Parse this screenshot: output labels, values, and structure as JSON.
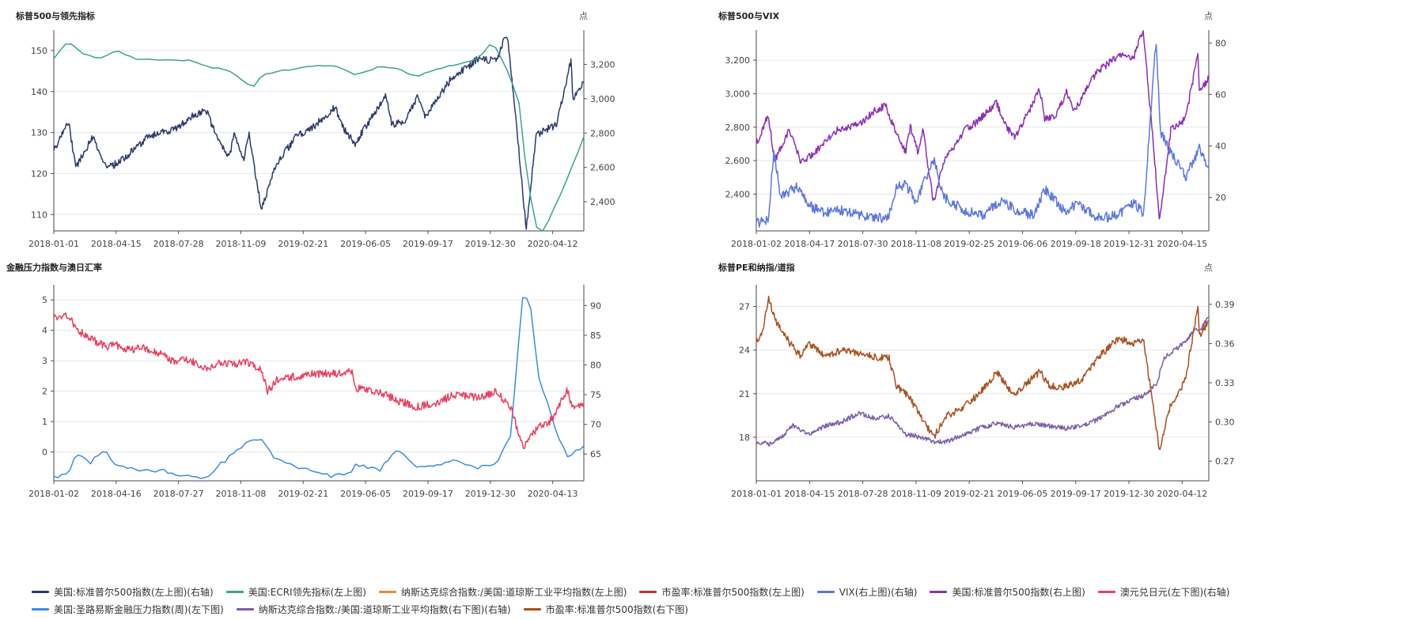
{
  "panels": [
    {
      "title": "标普500与领先指标",
      "unit": "点",
      "x_ticks": [
        "2018-01-01",
        "2018-04-15",
        "2018-07-28",
        "2018-11-09",
        "2019-02-21",
        "2019-06-05",
        "2019-09-17",
        "2019-12-30",
        "2020-04-12"
      ],
      "y_left_ticks": [
        "110",
        "120",
        "130",
        "140",
        "150"
      ],
      "y_right_ticks": [
        "2,400",
        "2,600",
        "2,800",
        "3,000",
        "3,200"
      ]
    },
    {
      "title": "标普500与VIX",
      "unit": "点",
      "x_ticks": [
        "2018-01-02",
        "2018-04-17",
        "2018-07-30",
        "2018-11-08",
        "2019-02-25",
        "2019-06-06",
        "2019-09-18",
        "2019-12-31",
        "2020-04-15"
      ],
      "y_left_ticks": [
        "2,400",
        "2,600",
        "2,800",
        "3,000",
        "3,200"
      ],
      "y_right_ticks": [
        "20",
        "40",
        "60",
        "80"
      ]
    },
    {
      "title": "金融压力指数与澳日汇率",
      "unit": "",
      "x_ticks": [
        "2018-01-02",
        "2018-04-16",
        "2018-07-27",
        "2018-11-08",
        "2019-02-21",
        "2019-06-05",
        "2019-09-17",
        "2019-12-30",
        "2020-04-13"
      ],
      "y_left_ticks": [
        "0",
        "1",
        "2",
        "3",
        "4",
        "5"
      ],
      "y_right_ticks": [
        "65",
        "70",
        "75",
        "80",
        "85",
        "90"
      ]
    },
    {
      "title": "标普PE和纳指/道指",
      "unit": "点",
      "x_ticks": [
        "2018-01-01",
        "2018-04-15",
        "2018-07-28",
        "2018-11-09",
        "2019-02-21",
        "2019-06-05",
        "2019-09-17",
        "2019-12-30",
        "2020-04-12"
      ],
      "y_left_ticks": [
        "18",
        "21",
        "24",
        "27"
      ],
      "y_right_ticks": [
        "0.27",
        "0.30",
        "0.33",
        "0.36",
        "0.39"
      ]
    }
  ],
  "legend": {
    "row1": [
      {
        "label": "美国:标准普尔500指数(左上图)(右轴)",
        "color": "#2c3a6e"
      },
      {
        "label": "美国:ECRI领先指标(左上图)",
        "color": "#3aa58a"
      },
      {
        "label": "纳斯达克综合指数:/美国:道琼斯工业平均指数(左上图)",
        "color": "#f08a2c"
      },
      {
        "label": "市盈率:标准普尔500指数(左上图)",
        "color": "#c8302c"
      },
      {
        "label": "VIX(右上图)(右轴)",
        "color": "#5b78e0"
      },
      {
        "label": "美国:标准普尔500指数(右上图)",
        "color": "#8a2fb8"
      },
      {
        "label": "澳元兑日元(左下图)(右轴)",
        "color": "#e8405e"
      }
    ],
    "row2": [
      {
        "label": "美国:圣路易斯金融压力指数(周)(左下图)",
        "color": "#3a8ee0"
      },
      {
        "label": "纳斯达克综合指数:/美国:道琼斯工业平均指数(右下图)(右轴)",
        "color": "#7b5ea8"
      },
      {
        "label": "市盈率:标准普尔500指数(右下图)",
        "color": "#a8501e"
      }
    ]
  },
  "chart_data": [
    {
      "type": "line",
      "title": "标普500与领先指标",
      "x_range": [
        "2018-01-01",
        "2020-06-30"
      ],
      "left_axis": {
        "ylim": [
          106,
          155
        ]
      },
      "right_axis": {
        "ylim": [
          2230,
          3400
        ]
      },
      "series": [
        {
          "name": "美国:标准普尔500指数(左上图)(右轴)",
          "axis": "right",
          "color": "#2c3a6e",
          "x": [
            "2018-01-01",
            "2018-01-26",
            "2018-02-08",
            "2018-03-09",
            "2018-04-02",
            "2018-05-01",
            "2018-06-12",
            "2018-07-27",
            "2018-08-29",
            "2018-09-20",
            "2018-10-10",
            "2018-10-29",
            "2018-11-07",
            "2018-11-23",
            "2018-12-03",
            "2018-12-24",
            "2019-01-15",
            "2019-02-21",
            "2019-03-21",
            "2019-04-30",
            "2019-05-15",
            "2019-06-03",
            "2019-07-26",
            "2019-08-05",
            "2019-08-26",
            "2019-09-19",
            "2019-10-02",
            "2019-11-15",
            "2019-12-31",
            "2020-01-31",
            "2020-02-19",
            "2020-03-09",
            "2020-03-23",
            "2020-04-09",
            "2020-05-14",
            "2020-06-08",
            "2020-06-11",
            "2020-06-30"
          ],
          "y": [
            2700,
            2870,
            2600,
            2780,
            2590,
            2650,
            2780,
            2820,
            2900,
            2930,
            2760,
            2650,
            2800,
            2650,
            2790,
            2350,
            2600,
            2780,
            2830,
            2950,
            2820,
            2740,
            3020,
            2850,
            2870,
            3010,
            2890,
            3120,
            3230,
            3220,
            3380,
            2750,
            2240,
            2790,
            2850,
            3230,
            3000,
            3100
          ]
        },
        {
          "name": "美国:ECRI领先指标(左上图)",
          "axis": "left",
          "color": "#3aa58a",
          "x": [
            "2018-01-01",
            "2018-01-26",
            "2018-02-15",
            "2018-03-20",
            "2018-04-20",
            "2018-05-20",
            "2018-06-20",
            "2018-07-28",
            "2018-08-25",
            "2018-09-28",
            "2018-10-29",
            "2018-12-10",
            "2018-12-24",
            "2019-01-20",
            "2019-02-21",
            "2019-04-01",
            "2019-05-01",
            "2019-06-05",
            "2019-07-15",
            "2019-08-15",
            "2019-09-17",
            "2019-10-20",
            "2019-11-20",
            "2019-12-30",
            "2020-01-25",
            "2020-02-20",
            "2020-03-10",
            "2020-03-25",
            "2020-04-12",
            "2020-04-22",
            "2020-05-15",
            "2020-06-08",
            "2020-06-30"
          ],
          "y": [
            148,
            152.5,
            149.5,
            148,
            150,
            148,
            147.8,
            147.5,
            147.5,
            146,
            145,
            141,
            144,
            145,
            145.5,
            146.5,
            146,
            144,
            146,
            145.5,
            143.5,
            145.5,
            146.5,
            148,
            152,
            145,
            138,
            118,
            105.5,
            106,
            113,
            121,
            129
          ]
        }
      ]
    },
    {
      "type": "line",
      "title": "标普500与VIX",
      "x_range": [
        "2018-01-02",
        "2020-06-30"
      ],
      "left_axis": {
        "ylim": [
          2180,
          3380
        ]
      },
      "right_axis": {
        "ylim": [
          7,
          85
        ]
      },
      "series": [
        {
          "name": "美国:标准普尔500指数(右上图)",
          "axis": "left",
          "color": "#8a2fb8",
          "x": [
            "2018-01-02",
            "2018-01-26",
            "2018-02-08",
            "2018-03-09",
            "2018-04-02",
            "2018-05-01",
            "2018-06-12",
            "2018-07-30",
            "2018-08-29",
            "2018-09-20",
            "2018-10-10",
            "2018-10-29",
            "2018-11-08",
            "2018-11-23",
            "2018-12-03",
            "2018-12-24",
            "2019-01-15",
            "2019-02-25",
            "2019-03-21",
            "2019-04-30",
            "2019-05-15",
            "2019-06-06",
            "2019-07-26",
            "2019-08-05",
            "2019-08-26",
            "2019-09-18",
            "2019-10-02",
            "2019-11-15",
            "2019-12-31",
            "2020-01-31",
            "2020-02-19",
            "2020-03-09",
            "2020-03-23",
            "2020-04-15",
            "2020-05-14",
            "2020-06-08",
            "2020-06-11",
            "2020-06-30"
          ],
          "y": [
            2700,
            2870,
            2600,
            2780,
            2590,
            2650,
            2780,
            2820,
            2900,
            2930,
            2760,
            2650,
            2800,
            2650,
            2790,
            2350,
            2600,
            2780,
            2830,
            2950,
            2820,
            2740,
            3020,
            2850,
            2870,
            3010,
            2890,
            3120,
            3230,
            3220,
            3380,
            2750,
            2240,
            2790,
            2850,
            3230,
            3000,
            3100
          ]
        },
        {
          "name": "VIX(右上图)(右轴)",
          "axis": "right",
          "color": "#5b78e0",
          "x": [
            "2018-01-02",
            "2018-01-26",
            "2018-02-06",
            "2018-02-20",
            "2018-03-23",
            "2018-04-17",
            "2018-05-20",
            "2018-06-20",
            "2018-07-30",
            "2018-08-30",
            "2018-09-25",
            "2018-10-11",
            "2018-10-29",
            "2018-11-20",
            "2018-12-24",
            "2019-01-15",
            "2019-02-25",
            "2019-04-01",
            "2019-05-13",
            "2019-06-06",
            "2019-07-15",
            "2019-08-05",
            "2019-09-18",
            "2019-10-08",
            "2019-11-20",
            "2019-12-31",
            "2020-01-31",
            "2020-02-20",
            "2020-03-16",
            "2020-03-25",
            "2020-04-15",
            "2020-05-15",
            "2020-06-11",
            "2020-06-30"
          ],
          "y": [
            10,
            11,
            38,
            20,
            24,
            17,
            14,
            15,
            13,
            12,
            12,
            24,
            25,
            18,
            35,
            20,
            15,
            13,
            19,
            15,
            13,
            23,
            14,
            18,
            12,
            13,
            18,
            14,
            82,
            45,
            37,
            28,
            39,
            31
          ]
        }
      ]
    },
    {
      "type": "line",
      "title": "金融压力指数与澳日汇率",
      "x_range": [
        "2018-01-02",
        "2020-06-30"
      ],
      "left_axis": {
        "ylim": [
          -0.95,
          5.5
        ]
      },
      "right_axis": {
        "ylim": [
          60.5,
          93.5
        ]
      },
      "series": [
        {
          "name": "美国:圣路易斯金融压力指数(周)(左下图)",
          "axis": "left",
          "color": "#3a8ee0",
          "x": [
            "2018-01-02",
            "2018-01-26",
            "2018-02-09",
            "2018-03-05",
            "2018-04-01",
            "2018-04-16",
            "2018-05-10",
            "2018-06-05",
            "2018-07-01",
            "2018-07-27",
            "2018-08-20",
            "2018-09-20",
            "2018-10-15",
            "2018-11-08",
            "2018-11-30",
            "2018-12-24",
            "2019-01-15",
            "2019-02-21",
            "2019-03-25",
            "2019-04-25",
            "2019-05-30",
            "2019-06-05",
            "2019-07-15",
            "2019-08-15",
            "2019-09-17",
            "2019-10-20",
            "2019-11-20",
            "2019-12-30",
            "2020-01-31",
            "2020-02-25",
            "2020-03-18",
            "2020-03-30",
            "2020-04-13",
            "2020-05-10",
            "2020-06-01",
            "2020-06-30"
          ],
          "y": [
            -0.8,
            -0.75,
            0,
            -0.35,
            0.05,
            -0.35,
            -0.5,
            -0.6,
            -0.6,
            -0.7,
            -0.8,
            -0.85,
            -0.4,
            -0.05,
            0.4,
            0.4,
            -0.2,
            -0.5,
            -0.6,
            -0.8,
            -0.7,
            -0.4,
            -0.6,
            0.05,
            -0.5,
            -0.4,
            -0.3,
            -0.5,
            -0.45,
            0.5,
            5.3,
            4.9,
            2.5,
            0.9,
            -0.2,
            0.2
          ]
        },
        {
          "name": "澳元兑日元(左下图)(右轴)",
          "axis": "right",
          "color": "#e8405e",
          "x": [
            "2018-01-02",
            "2018-01-26",
            "2018-02-09",
            "2018-03-05",
            "2018-04-01",
            "2018-04-16",
            "2018-05-10",
            "2018-06-05",
            "2018-07-01",
            "2018-07-27",
            "2018-08-20",
            "2018-09-20",
            "2018-10-15",
            "2018-11-08",
            "2018-11-30",
            "2018-12-24",
            "2019-01-04",
            "2019-01-20",
            "2019-02-21",
            "2019-03-25",
            "2019-04-25",
            "2019-05-30",
            "2019-06-05",
            "2019-07-15",
            "2019-08-15",
            "2019-09-17",
            "2019-10-20",
            "2019-11-20",
            "2019-12-30",
            "2020-01-31",
            "2020-02-25",
            "2020-03-18",
            "2020-03-30",
            "2020-04-13",
            "2020-05-10",
            "2020-06-01",
            "2020-06-10",
            "2020-06-30"
          ],
          "y": [
            88,
            88.5,
            86,
            84.5,
            83,
            83.5,
            82.5,
            83,
            82,
            80.5,
            81,
            79.5,
            80.5,
            80,
            80.5,
            79,
            75.5,
            77.5,
            78,
            78.5,
            78.5,
            79,
            76,
            75.5,
            74,
            73,
            73.5,
            75,
            74.5,
            75.5,
            73,
            66,
            68,
            69.5,
            71,
            76,
            73,
            73.5
          ]
        }
      ]
    },
    {
      "type": "line",
      "title": "标普PE和纳指/道指",
      "x_range": [
        "2018-01-01",
        "2020-06-30"
      ],
      "left_axis": {
        "ylim": [
          15,
          28.5
        ]
      },
      "right_axis": {
        "ylim": [
          0.255,
          0.405
        ]
      },
      "series": [
        {
          "name": "纳斯达克综合指数:/美国:道琼斯工业平均指数(右下图)(右轴)",
          "axis": "right",
          "color": "#7b5ea8",
          "x": [
            "2018-01-01",
            "2018-01-26",
            "2018-02-20",
            "2018-03-15",
            "2018-04-15",
            "2018-05-20",
            "2018-06-20",
            "2018-07-28",
            "2018-08-30",
            "2018-09-25",
            "2018-10-29",
            "2018-11-09",
            "2018-12-24",
            "2019-01-20",
            "2019-02-21",
            "2019-03-25",
            "2019-05-01",
            "2019-06-05",
            "2019-07-15",
            "2019-08-15",
            "2019-09-17",
            "2019-10-20",
            "2019-11-20",
            "2019-12-30",
            "2020-01-31",
            "2020-02-20",
            "2020-03-18",
            "2020-03-30",
            "2020-04-12",
            "2020-05-10",
            "2020-06-01",
            "2020-06-11",
            "2020-06-30"
          ],
          "y": [
            0.285,
            0.283,
            0.288,
            0.298,
            0.29,
            0.297,
            0.3,
            0.307,
            0.302,
            0.305,
            0.29,
            0.29,
            0.285,
            0.285,
            0.29,
            0.295,
            0.299,
            0.296,
            0.299,
            0.297,
            0.295,
            0.297,
            0.302,
            0.312,
            0.318,
            0.32,
            0.33,
            0.348,
            0.352,
            0.36,
            0.37,
            0.37,
            0.38
          ]
        },
        {
          "name": "市盈率:标准普尔500指数(右下图)",
          "axis": "left",
          "color": "#a8501e",
          "x": [
            "2018-01-01",
            "2018-01-15",
            "2018-01-26",
            "2018-02-09",
            "2018-03-09",
            "2018-04-02",
            "2018-04-15",
            "2018-05-20",
            "2018-06-20",
            "2018-07-28",
            "2018-08-30",
            "2018-09-25",
            "2018-10-10",
            "2018-10-29",
            "2018-11-09",
            "2018-12-24",
            "2019-01-20",
            "2019-02-21",
            "2019-03-25",
            "2019-05-01",
            "2019-05-20",
            "2019-06-05",
            "2019-07-26",
            "2019-08-15",
            "2019-09-17",
            "2019-10-20",
            "2019-11-20",
            "2019-12-30",
            "2020-01-31",
            "2020-02-20",
            "2020-03-23",
            "2020-04-12",
            "2020-05-14",
            "2020-06-08",
            "2020-06-11",
            "2020-06-30"
          ],
          "y": [
            24.5,
            25.5,
            27.5,
            26,
            24.5,
            23.5,
            24.5,
            23.5,
            24,
            23.8,
            23.5,
            23.5,
            21.5,
            21,
            20.5,
            18,
            19.5,
            20,
            21,
            22.5,
            21.5,
            21,
            22.5,
            21.5,
            21.5,
            22,
            23.5,
            24.8,
            24.5,
            24.6,
            17,
            20,
            22,
            27,
            25,
            26
          ]
        }
      ]
    }
  ]
}
